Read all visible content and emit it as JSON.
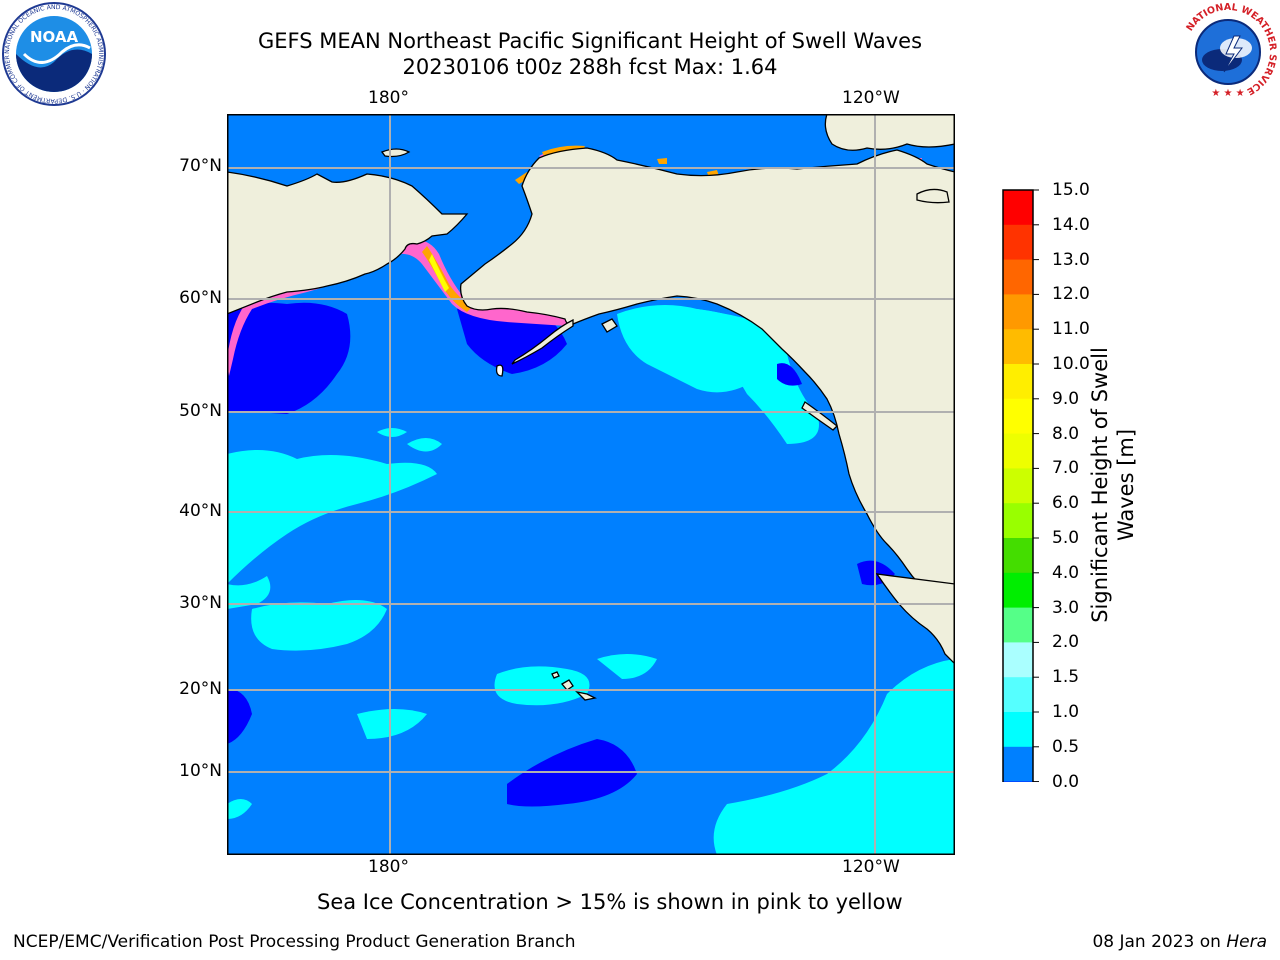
{
  "title": {
    "line1": "GEFS MEAN Northeast Pacific Significant Height of Swell Waves",
    "line2": "20230106 t00z 288h fcst   Max: 1.64"
  },
  "map": {
    "lon_labels": [
      "180°",
      "120°W"
    ],
    "lat_labels": [
      "70°N",
      "60°N",
      "50°N",
      "40°N",
      "30°N",
      "20°N",
      "10°N"
    ],
    "colors": {
      "ocean_main": "#0080ff",
      "ocean_low": "#0000ff",
      "ocean_mid": "#00ffff",
      "land": "#efefdc",
      "grid": "#b0b0b0",
      "ice_pink": "#ff66cc",
      "ice_orange": "#ffa500",
      "ice_yellow": "#ffff00"
    }
  },
  "colorbar": {
    "label_line1": "Significant Height of Swell",
    "label_line2": "Waves [m]",
    "ticks": [
      "15.0",
      "14.0",
      "13.0",
      "12.0",
      "11.0",
      "10.0",
      "9.0",
      "8.0",
      "7.0",
      "6.0",
      "5.0",
      "4.0",
      "3.0",
      "2.0",
      "1.5",
      "1.0",
      "0.5",
      "0.0"
    ],
    "colors": [
      "#ff0000",
      "#ff3300",
      "#ff6600",
      "#ff9900",
      "#ffbb00",
      "#ffee00",
      "#ffff00",
      "#eeff00",
      "#ccff00",
      "#99ff00",
      "#44dd00",
      "#00ee00",
      "#55ff88",
      "#aaffff",
      "#55ffff",
      "#00ffff",
      "#0080ff",
      "#0000ff"
    ]
  },
  "logos": {
    "noaa_text": "NOAA",
    "noaa_ring_text": "NATIONAL OCEANIC AND ATMOSPHERIC ADMINISTRATION · U.S. DEPARTMENT OF COMMERCE",
    "nws_ring_text": "NATIONAL WEATHER SERVICE"
  },
  "note": "Sea Ice Concentration > 15% is shown in pink to yellow",
  "footer": {
    "left": "NCEP/EMC/Verification Post Processing Product Generation Branch",
    "date": "08 Jan 2023 on",
    "machine": "Hera"
  }
}
